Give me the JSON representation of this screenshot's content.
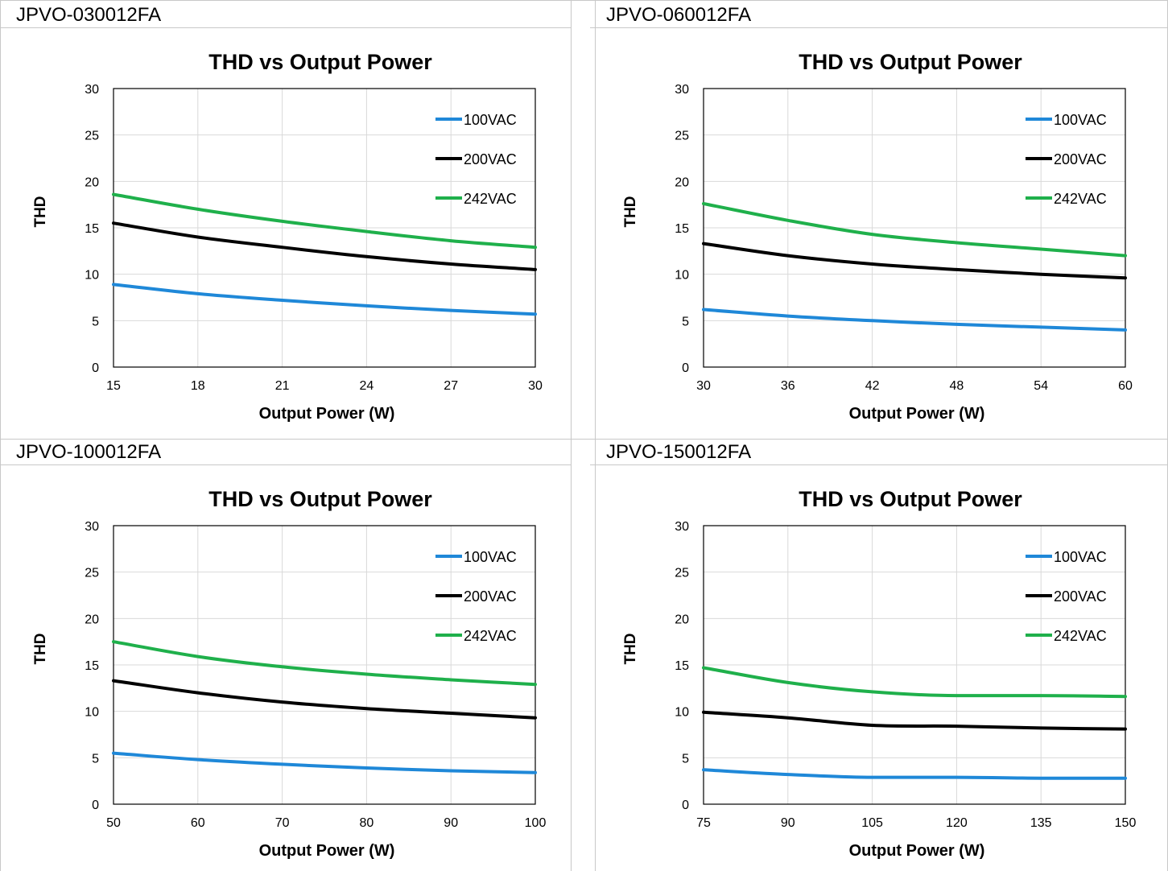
{
  "panels": [
    {
      "model": "JPVO-030012FA",
      "chart_data": {
        "type": "line",
        "title": "THD vs Output Power",
        "xlabel": "Output Power (W)",
        "ylabel": "THD",
        "xlim": [
          15,
          30
        ],
        "ylim": [
          0,
          30
        ],
        "xticks": [
          15,
          18,
          21,
          24,
          27,
          30
        ],
        "yticks": [
          0,
          5,
          10,
          15,
          20,
          25,
          30
        ],
        "grid": true,
        "legend": "top-right",
        "x": [
          15,
          18,
          21,
          24,
          27,
          30
        ],
        "series": [
          {
            "name": "100VAC",
            "color": "#1f88d8",
            "values": [
              8.9,
              7.9,
              7.2,
              6.6,
              6.1,
              5.7
            ]
          },
          {
            "name": "200VAC",
            "color": "#000000",
            "values": [
              15.5,
              14.0,
              12.9,
              11.9,
              11.1,
              10.5
            ]
          },
          {
            "name": "242VAC",
            "color": "#1fb04b",
            "values": [
              18.6,
              17.0,
              15.7,
              14.6,
              13.6,
              12.9
            ]
          }
        ]
      }
    },
    {
      "model": "JPVO-060012FA",
      "chart_data": {
        "type": "line",
        "title": "THD vs Output Power",
        "xlabel": "Output Power (W)",
        "ylabel": "THD",
        "xlim": [
          30,
          60
        ],
        "ylim": [
          0,
          30
        ],
        "xticks": [
          30,
          36,
          42,
          48,
          54,
          60
        ],
        "yticks": [
          0,
          5,
          10,
          15,
          20,
          25,
          30
        ],
        "grid": true,
        "legend": "top-right",
        "x": [
          30,
          36,
          42,
          48,
          54,
          60
        ],
        "series": [
          {
            "name": "100VAC",
            "color": "#1f88d8",
            "values": [
              6.2,
              5.5,
              5.0,
              4.6,
              4.3,
              4.0
            ]
          },
          {
            "name": "200VAC",
            "color": "#000000",
            "values": [
              13.3,
              12.0,
              11.1,
              10.5,
              10.0,
              9.6
            ]
          },
          {
            "name": "242VAC",
            "color": "#1fb04b",
            "values": [
              17.6,
              15.8,
              14.3,
              13.4,
              12.7,
              12.0
            ]
          }
        ]
      }
    },
    {
      "model": "JPVO-100012FA",
      "chart_data": {
        "type": "line",
        "title": "THD vs Output Power",
        "xlabel": "Output Power (W)",
        "ylabel": "THD",
        "xlim": [
          50,
          100
        ],
        "ylim": [
          0,
          30
        ],
        "xticks": [
          50,
          60,
          70,
          80,
          90,
          100
        ],
        "yticks": [
          0,
          5,
          10,
          15,
          20,
          25,
          30
        ],
        "grid": true,
        "legend": "top-right",
        "x": [
          50,
          60,
          70,
          80,
          90,
          100
        ],
        "series": [
          {
            "name": "100VAC",
            "color": "#1f88d8",
            "values": [
              5.5,
              4.8,
              4.3,
              3.9,
              3.6,
              3.4
            ]
          },
          {
            "name": "200VAC",
            "color": "#000000",
            "values": [
              13.3,
              12.0,
              11.0,
              10.3,
              9.8,
              9.3
            ]
          },
          {
            "name": "242VAC",
            "color": "#1fb04b",
            "values": [
              17.5,
              15.9,
              14.8,
              14.0,
              13.4,
              12.9
            ]
          }
        ]
      }
    },
    {
      "model": "JPVO-150012FA",
      "chart_data": {
        "type": "line",
        "title": "THD vs Output Power",
        "xlabel": "Output Power (W)",
        "ylabel": "THD",
        "xlim": [
          75,
          150
        ],
        "ylim": [
          0,
          30
        ],
        "xticks": [
          75,
          90,
          105,
          120,
          135,
          150
        ],
        "yticks": [
          0,
          5,
          10,
          15,
          20,
          25,
          30
        ],
        "grid": true,
        "legend": "top-right",
        "x": [
          75,
          90,
          105,
          120,
          135,
          150
        ],
        "series": [
          {
            "name": "100VAC",
            "color": "#1f88d8",
            "values": [
              3.7,
              3.2,
              2.9,
              2.9,
              2.8,
              2.8
            ]
          },
          {
            "name": "200VAC",
            "color": "#000000",
            "values": [
              9.9,
              9.3,
              8.5,
              8.4,
              8.2,
              8.1
            ]
          },
          {
            "name": "242VAC",
            "color": "#1fb04b",
            "values": [
              14.7,
              13.1,
              12.1,
              11.7,
              11.7,
              11.6
            ]
          }
        ]
      }
    }
  ]
}
